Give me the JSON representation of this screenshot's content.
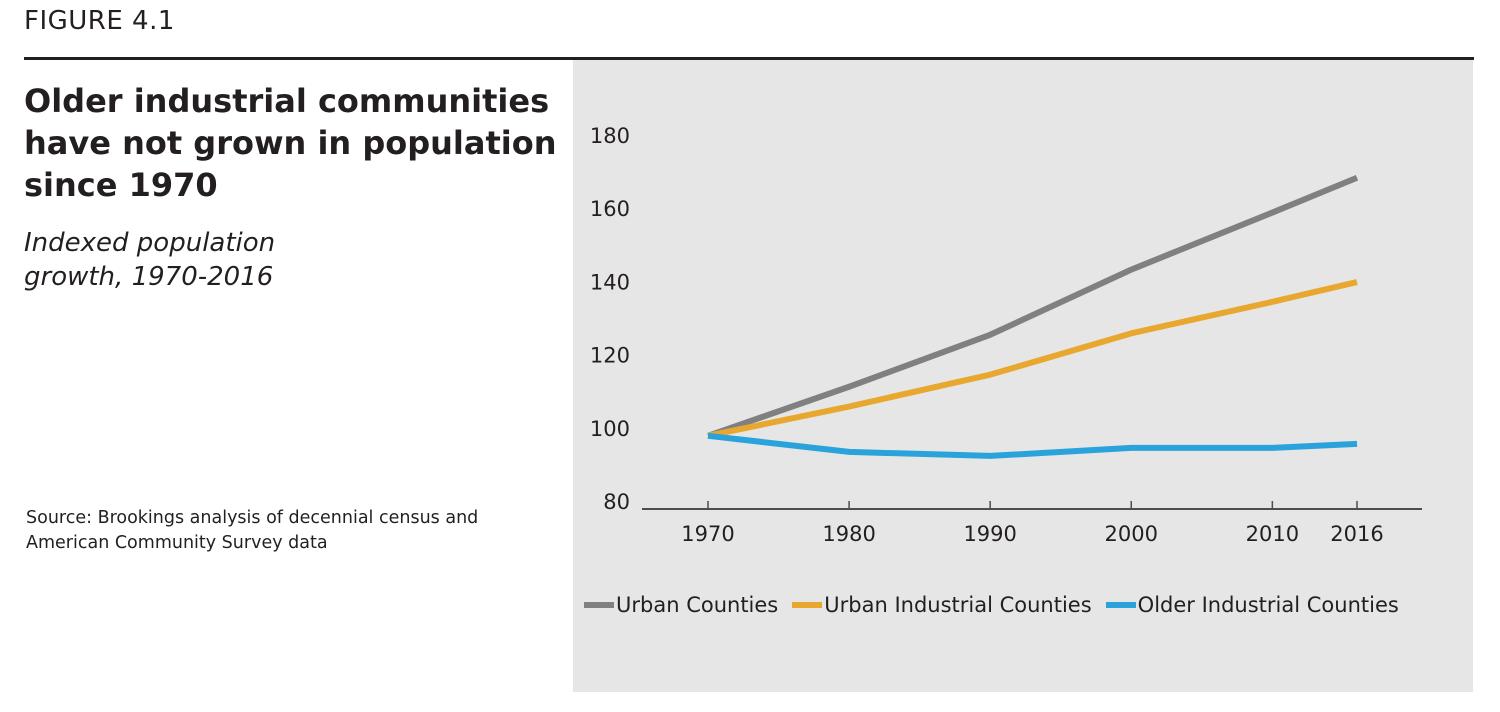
{
  "figure_label": "FIGURE 4.1",
  "title": "Older industrial communities have not grown in population since 1970",
  "subtitle": "Indexed population growth, 1970-2016",
  "source": "Source: Brookings analysis of decennial census and American Community Survey data",
  "chart_data": {
    "type": "line",
    "title": "Older industrial communities have not grown in population since 1970",
    "subtitle": "Indexed population growth, 1970-2016",
    "xlabel": "",
    "ylabel": "",
    "x": [
      "1970",
      "1980",
      "1990",
      "2000",
      "2010",
      "2016"
    ],
    "x_numeric": [
      1970,
      1980,
      1990,
      2000,
      2010,
      2016
    ],
    "ylim": [
      80,
      180
    ],
    "yticks": [
      80,
      100,
      120,
      140,
      160,
      180
    ],
    "grid": false,
    "legend_position": "bottom",
    "series": [
      {
        "name": "Urban Counties",
        "color": "#808080",
        "values": [
          100,
          113.4,
          127.6,
          145.4,
          161,
          170.5
        ]
      },
      {
        "name": "Urban Industrial Counties",
        "color": "#e8a830",
        "values": [
          100,
          108,
          116.7,
          128,
          136.6,
          142
        ]
      },
      {
        "name": "Older Industrial Counties",
        "color": "#2aa3dc",
        "values": [
          100,
          95.6,
          94.5,
          96.7,
          96.7,
          97.8
        ]
      }
    ]
  }
}
